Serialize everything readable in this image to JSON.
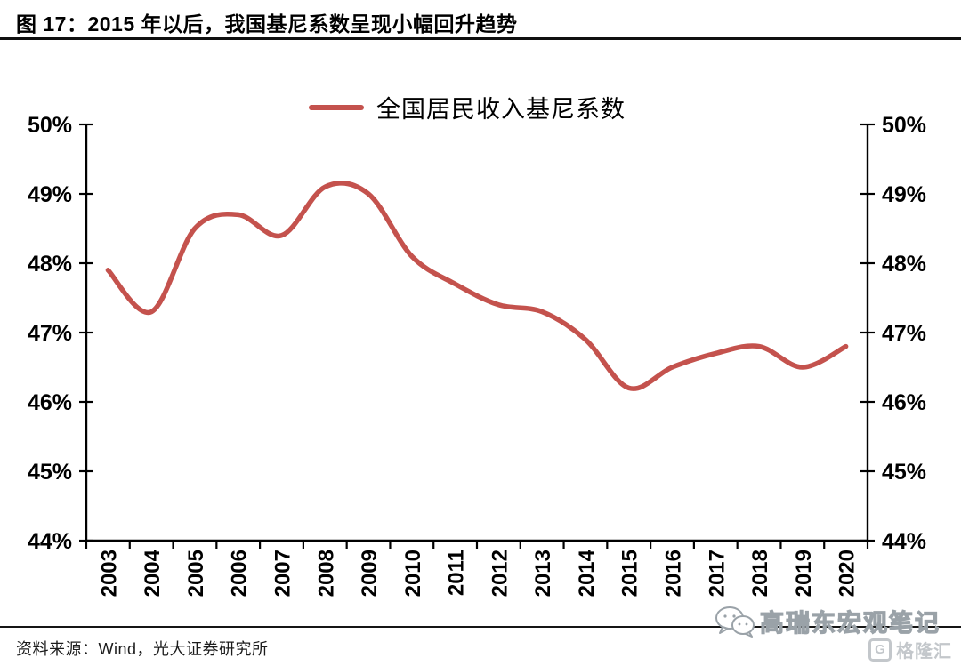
{
  "figure": {
    "title": "图 17：2015 年以后，我国基尼系数呈现小幅回升趋势",
    "source": "资料来源：Wind，光大证券研究所"
  },
  "watermark": {
    "name": "高瑞东宏观笔记",
    "wechat_icon": "wechat-icon",
    "logo_letter": "G",
    "logo_text": "格隆汇",
    "color": "#9aa2a8"
  },
  "chart_data": {
    "type": "line",
    "title": "",
    "legend_position": "top",
    "categories": [
      "2003",
      "2004",
      "2005",
      "2006",
      "2007",
      "2008",
      "2009",
      "2010",
      "2011",
      "2012",
      "2013",
      "2014",
      "2015",
      "2016",
      "2017",
      "2018",
      "2019",
      "2020"
    ],
    "series": [
      {
        "name": "全国居民收入基尼系数",
        "values": [
          47.9,
          47.3,
          48.5,
          48.7,
          48.4,
          49.1,
          49.0,
          48.1,
          47.7,
          47.4,
          47.3,
          46.9,
          46.2,
          46.5,
          46.7,
          46.8,
          46.5,
          46.8
        ]
      }
    ],
    "xlabel": "",
    "ylabel": "",
    "ylim": [
      44,
      50
    ],
    "y_tick_step": 1,
    "y_tick_suffix": "%",
    "dual_y_axis": true,
    "grid": false,
    "smooth": true,
    "line_color": "#C4524D",
    "axis_color": "#000000"
  }
}
